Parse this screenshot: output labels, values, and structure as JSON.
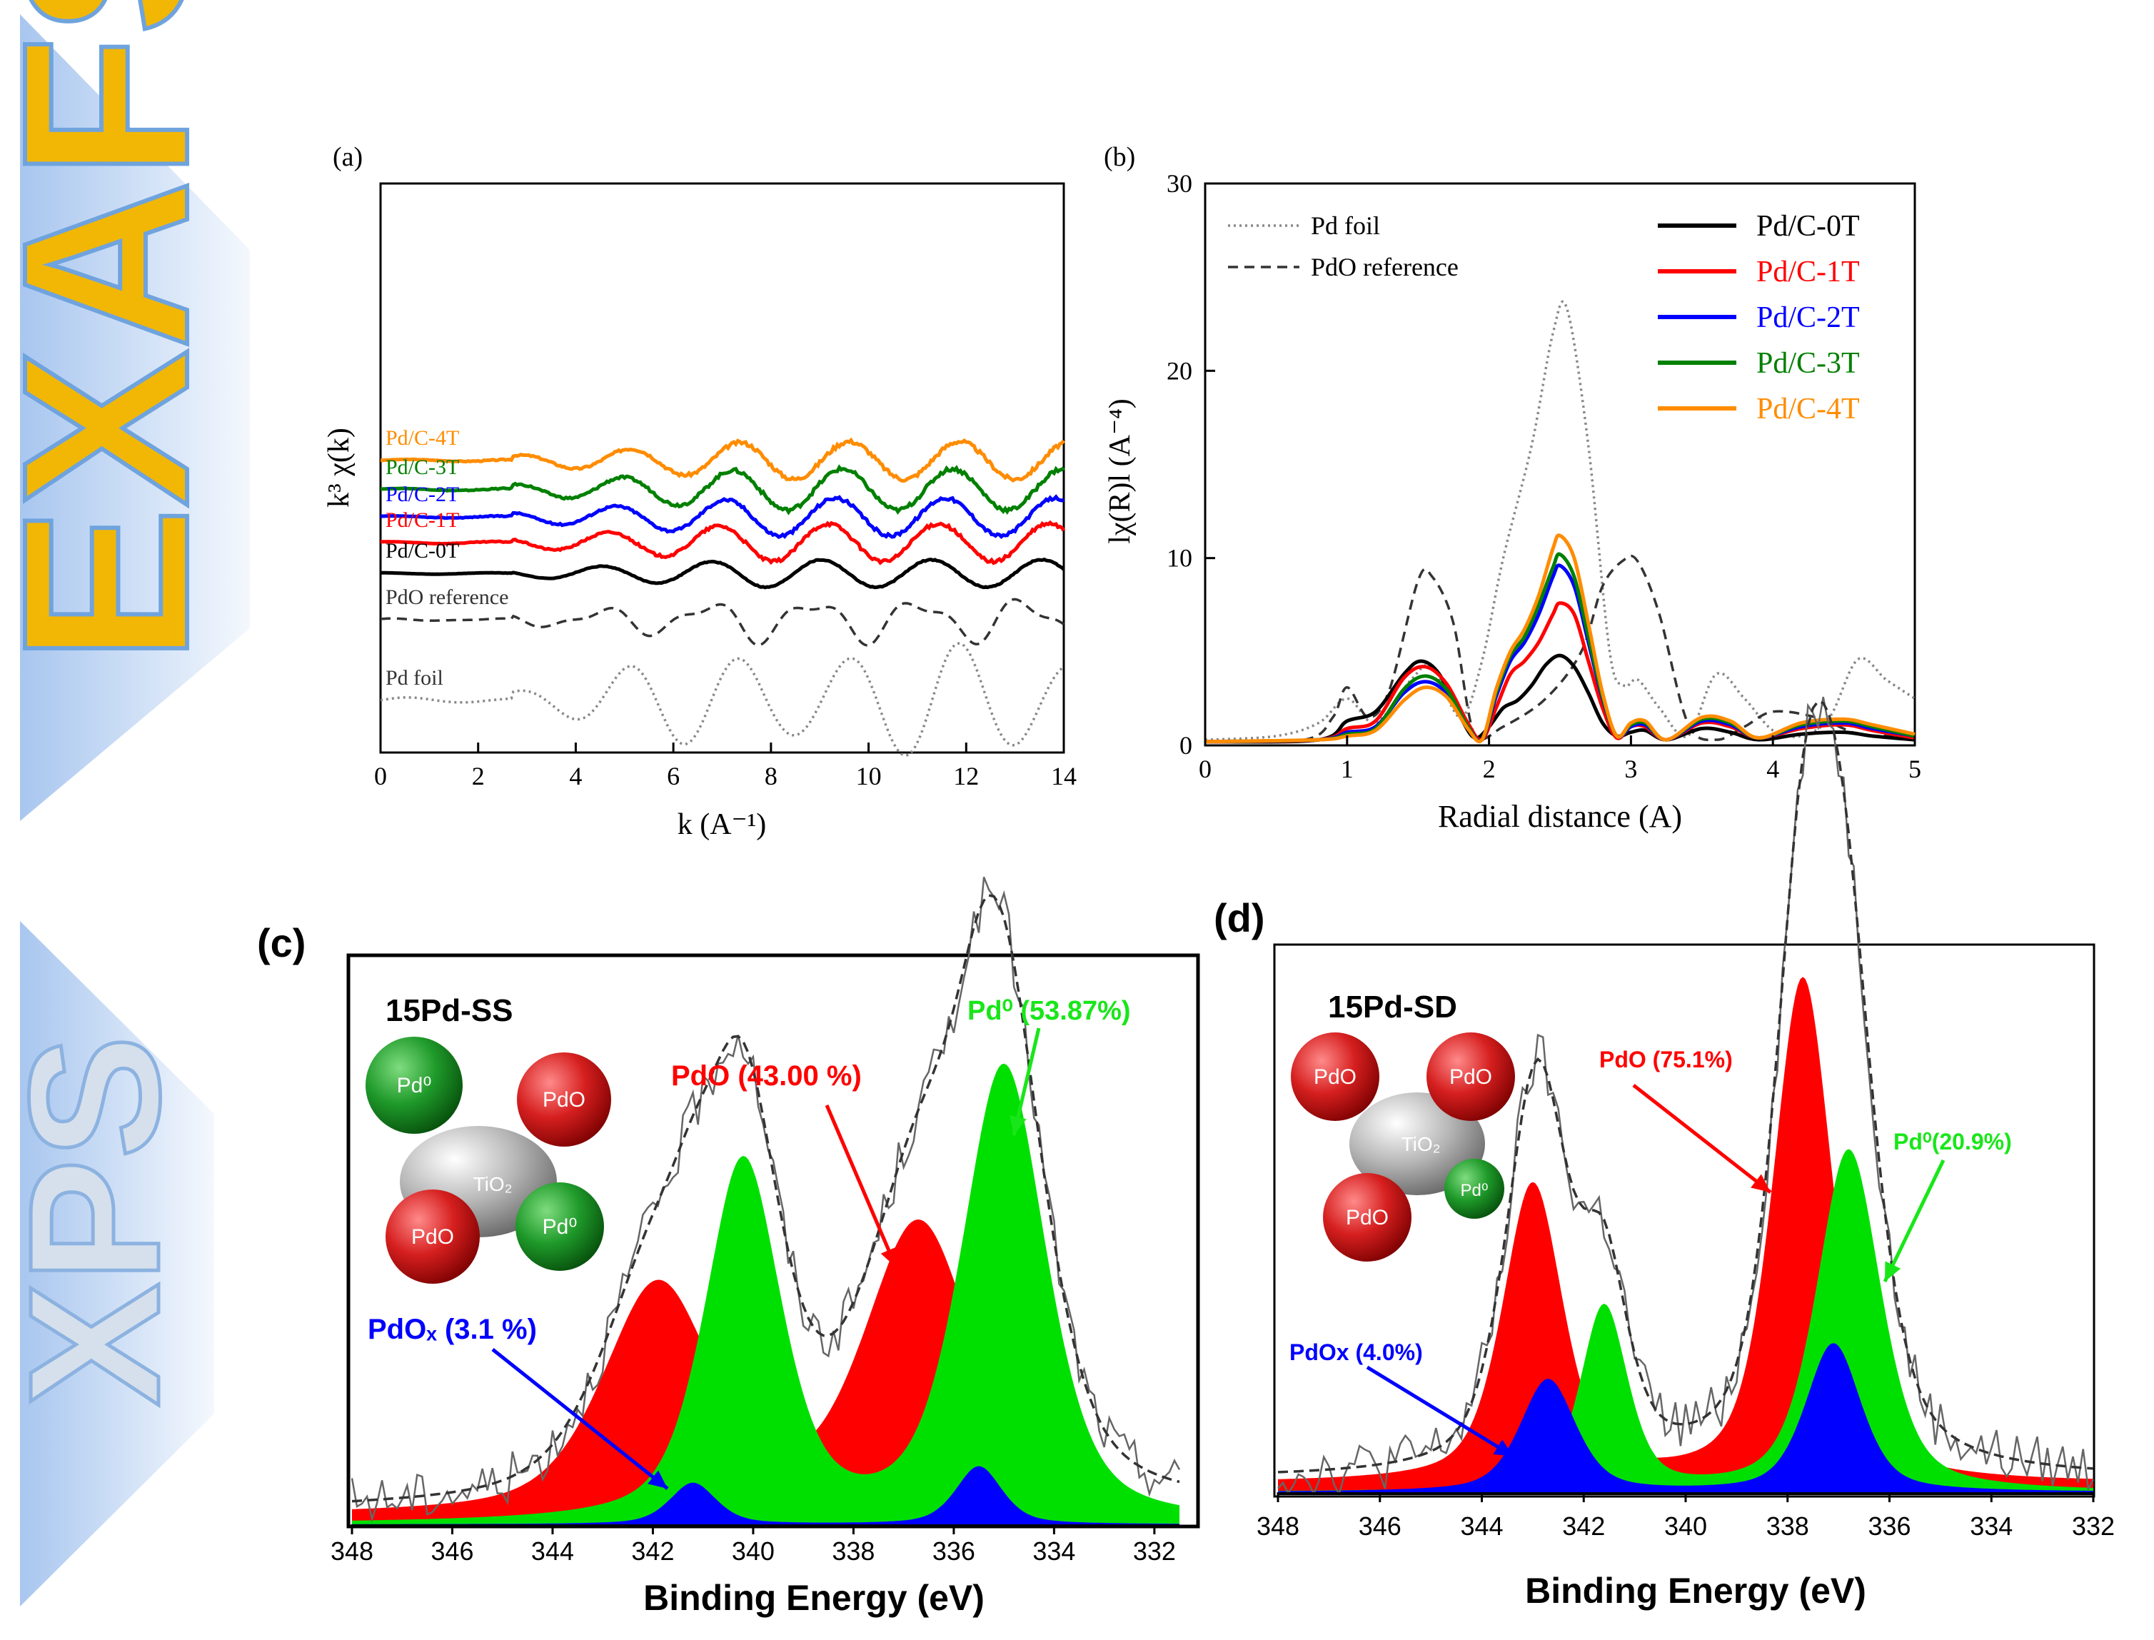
{
  "banners": {
    "exafs": "EXAFS",
    "xps": "XPS",
    "colors": {
      "exafs_text": "#f2b705",
      "exafs_outline": "#6fa3dd",
      "xps_text": "#c9d6e6",
      "xps_outline": "#8cb2e0",
      "arrow_fill": "#bcd5f3"
    }
  },
  "chart_data": [
    {
      "id": "a",
      "panel_label": "(a)",
      "type": "line",
      "xlabel": "k (A⁻¹)",
      "ylabel": "k³ χ(k)",
      "xlim": [
        0,
        14
      ],
      "xticks": [
        0,
        2,
        4,
        6,
        8,
        10,
        12,
        14
      ],
      "yticks_shown": false,
      "legend": "inline labels at left",
      "series": [
        {
          "name": "Pd/C-4T",
          "color": "#ff8c00",
          "style": "solid",
          "offset": 6.4,
          "amp": 0.55,
          "noise": 0.12
        },
        {
          "name": "Pd/C-3T",
          "color": "#008000",
          "style": "solid",
          "offset": 5.55,
          "amp": 0.6,
          "noise": 0.12
        },
        {
          "name": "Pd/C-2T",
          "color": "#0000ff",
          "style": "solid",
          "offset": 4.75,
          "amp": 0.55,
          "noise": 0.1
        },
        {
          "name": "Pd/C-1T",
          "color": "#ff0000",
          "style": "solid",
          "offset": 4.0,
          "amp": 0.55,
          "noise": 0.1
        },
        {
          "name": "Pd/C-0T",
          "color": "#000000",
          "style": "solid",
          "offset": 3.1,
          "amp": 0.4,
          "noise": 0.03
        },
        {
          "name": "PdO reference",
          "color": "#333333",
          "style": "dashed",
          "offset": 1.75,
          "amp": 0.75,
          "noise": 0.0
        },
        {
          "name": "Pd foil",
          "color": "#888888",
          "style": "dotted",
          "offset": -0.6,
          "amp": 1.7,
          "noise": 0.0
        }
      ]
    },
    {
      "id": "b",
      "panel_label": "(b)",
      "type": "line",
      "xlabel": "Radial distance (A)",
      "ylabel": "lχ(R)l (A⁻⁴)",
      "xlim": [
        0,
        5
      ],
      "ylim": [
        0,
        30
      ],
      "xticks": [
        0,
        1,
        2,
        3,
        4,
        5
      ],
      "yticks": [
        0,
        10,
        20,
        30
      ],
      "legend": "top",
      "series": [
        {
          "name": "Pd foil",
          "color": "#888888",
          "style": "dotted",
          "x": [
            0,
            0.5,
            0.8,
            1.0,
            1.2,
            1.45,
            1.6,
            1.8,
            1.95,
            2.1,
            2.3,
            2.45,
            2.55,
            2.7,
            2.85,
            2.95,
            3.05,
            3.2,
            3.4,
            3.6,
            3.8,
            4.0,
            4.2,
            4.4,
            4.6,
            4.8,
            5.0
          ],
          "y": [
            0.3,
            0.5,
            1.2,
            2.5,
            1.2,
            3.5,
            4.2,
            1.5,
            4.5,
            10,
            16,
            22,
            23.3,
            16,
            5,
            3.2,
            3.5,
            2.0,
            0.5,
            3.8,
            2.5,
            0.8,
            0.5,
            1.5,
            4.6,
            3.5,
            2.5
          ]
        },
        {
          "name": "PdO reference",
          "color": "#333333",
          "style": "dashed",
          "x": [
            0,
            0.7,
            0.9,
            1.0,
            1.15,
            1.3,
            1.5,
            1.6,
            1.75,
            1.9,
            2.1,
            2.4,
            2.65,
            2.8,
            2.95,
            3.05,
            3.2,
            3.4,
            3.6,
            3.8,
            4.0,
            4.3,
            4.6,
            4.8,
            5.0
          ],
          "y": [
            0.2,
            0.3,
            1.5,
            3.1,
            1.5,
            3.0,
            8.8,
            9.0,
            6.5,
            0.5,
            1.0,
            2.5,
            5.0,
            8.5,
            9.9,
            9.8,
            7.0,
            1.2,
            0.3,
            1.0,
            1.8,
            1.5,
            0.6,
            0.5,
            0.3
          ]
        },
        {
          "name": "Pd/C-0T",
          "color": "#000000",
          "style": "solid",
          "x": [
            0,
            0.8,
            1.0,
            1.2,
            1.4,
            1.52,
            1.65,
            1.8,
            1.9,
            2.0,
            2.1,
            2.2,
            2.3,
            2.4,
            2.5,
            2.6,
            2.7,
            2.8,
            2.9,
            3.0,
            3.1,
            3.25,
            3.5,
            3.7,
            3.9,
            4.2,
            4.5,
            4.7,
            5.0
          ],
          "y": [
            0.2,
            0.3,
            1.3,
            1.8,
            3.8,
            4.5,
            3.8,
            1.5,
            0.4,
            1.0,
            2.0,
            2.4,
            3.2,
            4.3,
            4.8,
            4.2,
            2.8,
            1.2,
            0.5,
            0.7,
            0.8,
            0.3,
            0.9,
            0.7,
            0.3,
            0.6,
            0.7,
            0.5,
            0.3
          ]
        },
        {
          "name": "Pd/C-1T",
          "color": "#ff0000",
          "style": "solid",
          "x": [
            0,
            0.8,
            1.0,
            1.2,
            1.4,
            1.55,
            1.7,
            1.85,
            1.95,
            2.05,
            2.15,
            2.25,
            2.35,
            2.45,
            2.5,
            2.6,
            2.7,
            2.8,
            2.9,
            3.0,
            3.1,
            3.25,
            3.5,
            3.7,
            3.9,
            4.2,
            4.5,
            4.7,
            5.0
          ],
          "y": [
            0.2,
            0.3,
            0.9,
            1.3,
            3.6,
            4.2,
            3.3,
            1.2,
            0.3,
            2.0,
            3.8,
            4.5,
            5.5,
            7.0,
            7.6,
            7.0,
            4.5,
            2.0,
            0.4,
            1.0,
            1.0,
            0.3,
            1.2,
            1.0,
            0.4,
            0.9,
            1.1,
            0.8,
            0.4
          ]
        },
        {
          "name": "Pd/C-2T",
          "color": "#0000ff",
          "style": "solid",
          "x": [
            0,
            0.8,
            1.0,
            1.2,
            1.4,
            1.55,
            1.7,
            1.85,
            1.95,
            2.05,
            2.15,
            2.25,
            2.35,
            2.45,
            2.5,
            2.6,
            2.7,
            2.8,
            2.9,
            3.0,
            3.1,
            3.25,
            3.5,
            3.7,
            3.9,
            4.2,
            4.5,
            4.7,
            5.0
          ],
          "y": [
            0.2,
            0.3,
            0.7,
            1.0,
            2.8,
            3.4,
            2.8,
            1.0,
            0.3,
            2.6,
            4.5,
            5.5,
            7.0,
            9.0,
            9.6,
            8.5,
            5.5,
            2.5,
            0.5,
            1.0,
            1.1,
            0.3,
            1.3,
            1.1,
            0.4,
            1.0,
            1.2,
            0.9,
            0.5
          ]
        },
        {
          "name": "Pd/C-3T",
          "color": "#008000",
          "style": "solid",
          "x": [
            0,
            0.8,
            1.0,
            1.2,
            1.4,
            1.55,
            1.7,
            1.85,
            1.95,
            2.05,
            2.15,
            2.25,
            2.35,
            2.45,
            2.5,
            2.6,
            2.7,
            2.8,
            2.9,
            3.0,
            3.1,
            3.25,
            3.5,
            3.7,
            3.9,
            4.2,
            4.5,
            4.7,
            5.0
          ],
          "y": [
            0.2,
            0.3,
            0.6,
            0.9,
            3.0,
            3.7,
            3.0,
            1.0,
            0.3,
            2.8,
            4.8,
            5.8,
            7.5,
            9.5,
            10.2,
            9.0,
            5.8,
            2.6,
            0.5,
            1.1,
            1.2,
            0.3,
            1.4,
            1.2,
            0.4,
            1.1,
            1.3,
            1.0,
            0.5
          ]
        },
        {
          "name": "Pd/C-4T",
          "color": "#ff8c00",
          "style": "solid",
          "x": [
            0,
            0.8,
            1.0,
            1.2,
            1.4,
            1.55,
            1.7,
            1.85,
            1.95,
            2.05,
            2.15,
            2.25,
            2.35,
            2.45,
            2.5,
            2.6,
            2.7,
            2.8,
            2.9,
            3.0,
            3.1,
            3.25,
            3.5,
            3.7,
            3.9,
            4.2,
            4.5,
            4.7,
            5.0
          ],
          "y": [
            0.2,
            0.3,
            0.5,
            0.8,
            2.4,
            3.1,
            2.6,
            0.9,
            0.3,
            3.0,
            5.0,
            6.2,
            8.0,
            10.5,
            11.2,
            10.0,
            6.5,
            2.8,
            0.5,
            1.2,
            1.3,
            0.3,
            1.5,
            1.3,
            0.4,
            1.2,
            1.4,
            1.1,
            0.6
          ]
        }
      ]
    },
    {
      "id": "c",
      "panel_label": "(c)",
      "type": "area",
      "sample": "15Pd-SS",
      "xlabel": "Binding Energy (eV)",
      "xlim": [
        348,
        331.5
      ],
      "xticks": [
        348,
        346,
        344,
        342,
        340,
        338,
        336,
        334,
        332
      ],
      "reversed_x": true,
      "components": [
        {
          "name": "PdO (43.00 %)",
          "color": "#ff0000",
          "peaks": [
            {
              "center": 341.9,
              "height": 0.55,
              "width": 1.3
            },
            {
              "center": 336.7,
              "height": 0.7,
              "width": 1.3
            }
          ]
        },
        {
          "name": "Pd⁰ (53.87%)",
          "color": "#00e000",
          "peaks": [
            {
              "center": 340.2,
              "height": 0.87,
              "width": 0.9
            },
            {
              "center": 335.0,
              "height": 1.1,
              "width": 1.0
            }
          ]
        },
        {
          "name": "PdOₓ (3.1 %)",
          "color": "#0000ff",
          "peaks": [
            {
              "center": 341.2,
              "height": 0.1,
              "width": 0.55
            },
            {
              "center": 335.5,
              "height": 0.14,
              "width": 0.55
            }
          ]
        }
      ],
      "particle_labels": [
        "Pd⁰",
        "PdO",
        "TiO₂",
        "PdO",
        "Pd⁰"
      ]
    },
    {
      "id": "d",
      "panel_label": "(d)",
      "type": "area",
      "sample": "15Pd-SD",
      "xlabel": "Binding Energy (eV)",
      "xlim": [
        348,
        332
      ],
      "xticks": [
        348,
        346,
        344,
        342,
        340,
        338,
        336,
        334,
        332
      ],
      "reversed_x": true,
      "components": [
        {
          "name": "PdO (75.1%)",
          "color": "#ff0000",
          "peaks": [
            {
              "center": 343.0,
              "height": 0.66,
              "width": 0.7
            },
            {
              "center": 337.7,
              "height": 1.12,
              "width": 0.7
            }
          ]
        },
        {
          "name": "Pd⁰(20.9%)",
          "color": "#00e000",
          "peaks": [
            {
              "center": 341.6,
              "height": 0.41,
              "width": 0.55
            },
            {
              "center": 336.8,
              "height": 0.76,
              "width": 0.75
            }
          ]
        },
        {
          "name": "PdOx (4.0%)",
          "color": "#0000ff",
          "peaks": [
            {
              "center": 342.7,
              "height": 0.25,
              "width": 0.65
            },
            {
              "center": 337.1,
              "height": 0.33,
              "width": 0.65
            }
          ]
        }
      ],
      "particle_labels": [
        "PdO",
        "PdO",
        "TiO₂",
        "PdO",
        "Pd⁰"
      ]
    }
  ]
}
